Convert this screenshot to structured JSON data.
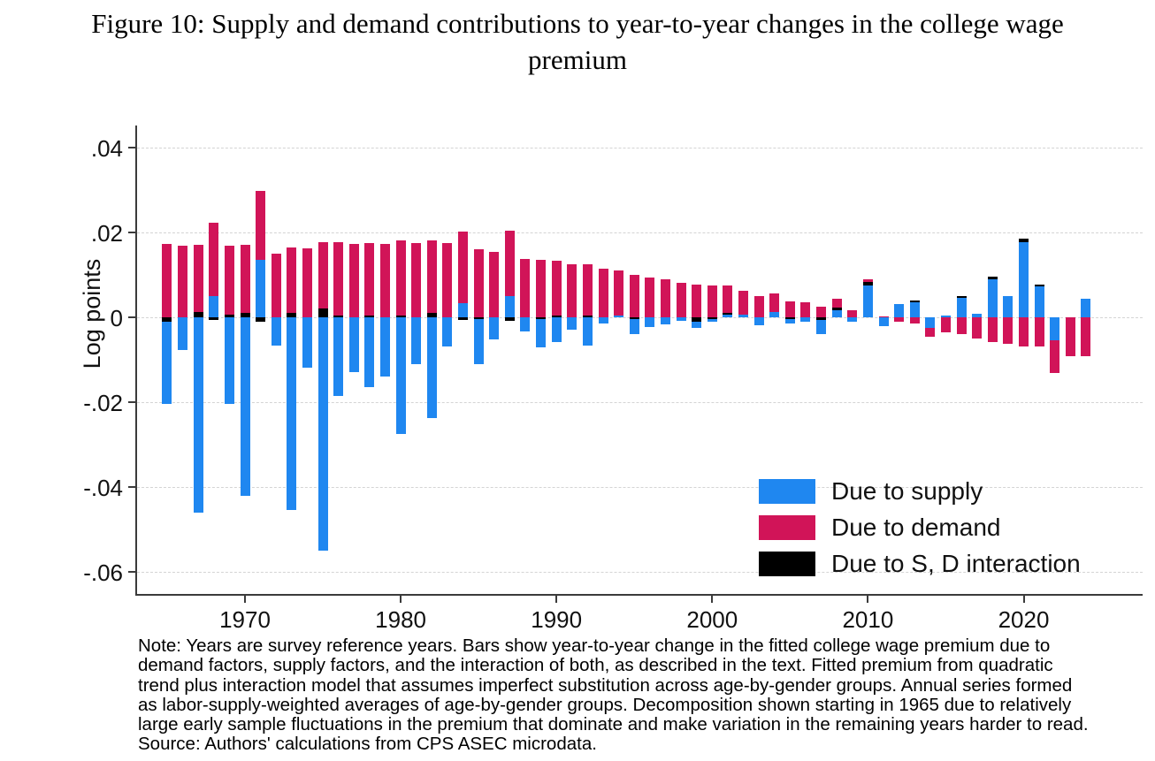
{
  "figure": {
    "title_line1": "Figure 10: Supply and demand contributions to year-to-year changes in the college wage",
    "title_line2": "premium"
  },
  "chart_data": {
    "type": "bar",
    "stacked": true,
    "title": "Supply and demand contributions to year-to-year changes in the college wage premium",
    "xlabel": "",
    "ylabel": "Log points",
    "ylim": [
      -0.068,
      0.045
    ],
    "grid": true,
    "legend_position": "inside-bottom-right",
    "ytick_labels": [
      ".04",
      ".02",
      "0",
      "-.02",
      "-.04",
      "-.06"
    ],
    "ytick_values": [
      0.04,
      0.02,
      0,
      -0.02,
      -0.04,
      -0.06
    ],
    "xtick_years": [
      1970,
      1980,
      1990,
      2000,
      2010,
      2020
    ],
    "years": [
      1965,
      1966,
      1967,
      1968,
      1969,
      1970,
      1971,
      1972,
      1973,
      1974,
      1975,
      1976,
      1977,
      1978,
      1979,
      1980,
      1981,
      1982,
      1983,
      1984,
      1985,
      1986,
      1987,
      1988,
      1989,
      1990,
      1991,
      1992,
      1993,
      1994,
      1995,
      1996,
      1997,
      1998,
      1999,
      2000,
      2001,
      2002,
      2003,
      2004,
      2005,
      2006,
      2007,
      2008,
      2009,
      2010,
      2011,
      2012,
      2013,
      2014,
      2015,
      2016,
      2017,
      2018,
      2019,
      2020,
      2021,
      2022,
      2023,
      2024
    ],
    "series": [
      {
        "name": "Due to supply",
        "color": "#1f87f0",
        "values": [
          -0.0195,
          -0.0078,
          -0.046,
          0.005,
          -0.0205,
          -0.042,
          0.0135,
          -0.0066,
          -0.0455,
          -0.0118,
          -0.055,
          -0.0185,
          -0.013,
          -0.0165,
          -0.014,
          -0.0275,
          -0.011,
          -0.0238,
          -0.0068,
          0.0033,
          -0.0105,
          -0.0052,
          0.005,
          -0.0034,
          -0.0065,
          -0.0058,
          -0.003,
          -0.0066,
          -0.0015,
          0.0005,
          -0.0035,
          -0.0022,
          -0.0017,
          -0.0008,
          -0.0016,
          -0.0006,
          0.0006,
          0.0006,
          -0.0018,
          0.0013,
          -0.001,
          -0.001,
          -0.0033,
          0.0016,
          -0.001,
          0.0074,
          -0.0021,
          0.0031,
          0.0035,
          -0.0025,
          0.0005,
          0.0046,
          0.0008,
          0.009,
          0.005,
          0.0177,
          0.0073,
          -0.0054,
          0,
          0.0043
        ]
      },
      {
        "name": "Due to demand",
        "color": "#d11458",
        "values": [
          0.0172,
          0.0168,
          0.0158,
          0.0172,
          0.0162,
          0.016,
          0.0163,
          0.015,
          0.0155,
          0.0163,
          0.0158,
          0.0172,
          0.0172,
          0.017,
          0.0172,
          0.0176,
          0.0175,
          0.0172,
          0.0175,
          0.017,
          0.016,
          0.0155,
          0.0155,
          0.0137,
          0.0135,
          0.013,
          0.0125,
          0.012,
          0.0114,
          0.0106,
          0.01,
          0.0094,
          0.0089,
          0.0081,
          0.0078,
          0.0074,
          0.0064,
          0.0056,
          0.0049,
          0.0044,
          0.0038,
          0.0036,
          0.0026,
          0.0021,
          0.0017,
          0.0006,
          0.0002,
          -0.001,
          -0.0015,
          -0.002,
          -0.0035,
          -0.004,
          -0.005,
          -0.0059,
          -0.0063,
          -0.0068,
          -0.0068,
          -0.0077,
          -0.0092,
          -0.0092
        ]
      },
      {
        "name": "Due to S, D interaction",
        "color": "#000000",
        "values": [
          -0.001,
          0,
          0.0012,
          -0.0006,
          0.0006,
          0.001,
          -0.001,
          0,
          0.001,
          0,
          0.002,
          0.0005,
          0,
          0.0005,
          0,
          0.0005,
          0,
          0.001,
          0,
          -0.0007,
          -0.0005,
          0,
          -0.0008,
          0,
          -0.0005,
          0.0004,
          0,
          0.0004,
          0,
          0,
          -0.0005,
          0,
          0,
          0,
          -0.001,
          -0.0004,
          0.0004,
          0,
          0,
          0,
          -0.0004,
          0,
          -0.0006,
          0.0006,
          0,
          0.001,
          0,
          0,
          0.0004,
          0,
          0,
          0.0005,
          0,
          0.0005,
          0,
          0.0009,
          0.0005,
          0,
          0,
          0
        ]
      }
    ]
  },
  "note": {
    "lines": [
      "Note: Years are survey reference years. Bars show year-to-year change in the fitted college wage premium due to",
      "demand factors, supply factors, and the interaction of both, as described in the text. Fitted premium from quadratic",
      "trend plus interaction model that assumes imperfect substitution across age-by-gender groups. Annual series formed",
      "as labor-supply-weighted averages of age-by-gender groups. Decomposition shown starting in 1965 due to relatively",
      "large early sample fluctuations in the premium that dominate and make variation in the remaining years harder to read.",
      "Source: Authors' calculations from CPS ASEC microdata."
    ]
  }
}
